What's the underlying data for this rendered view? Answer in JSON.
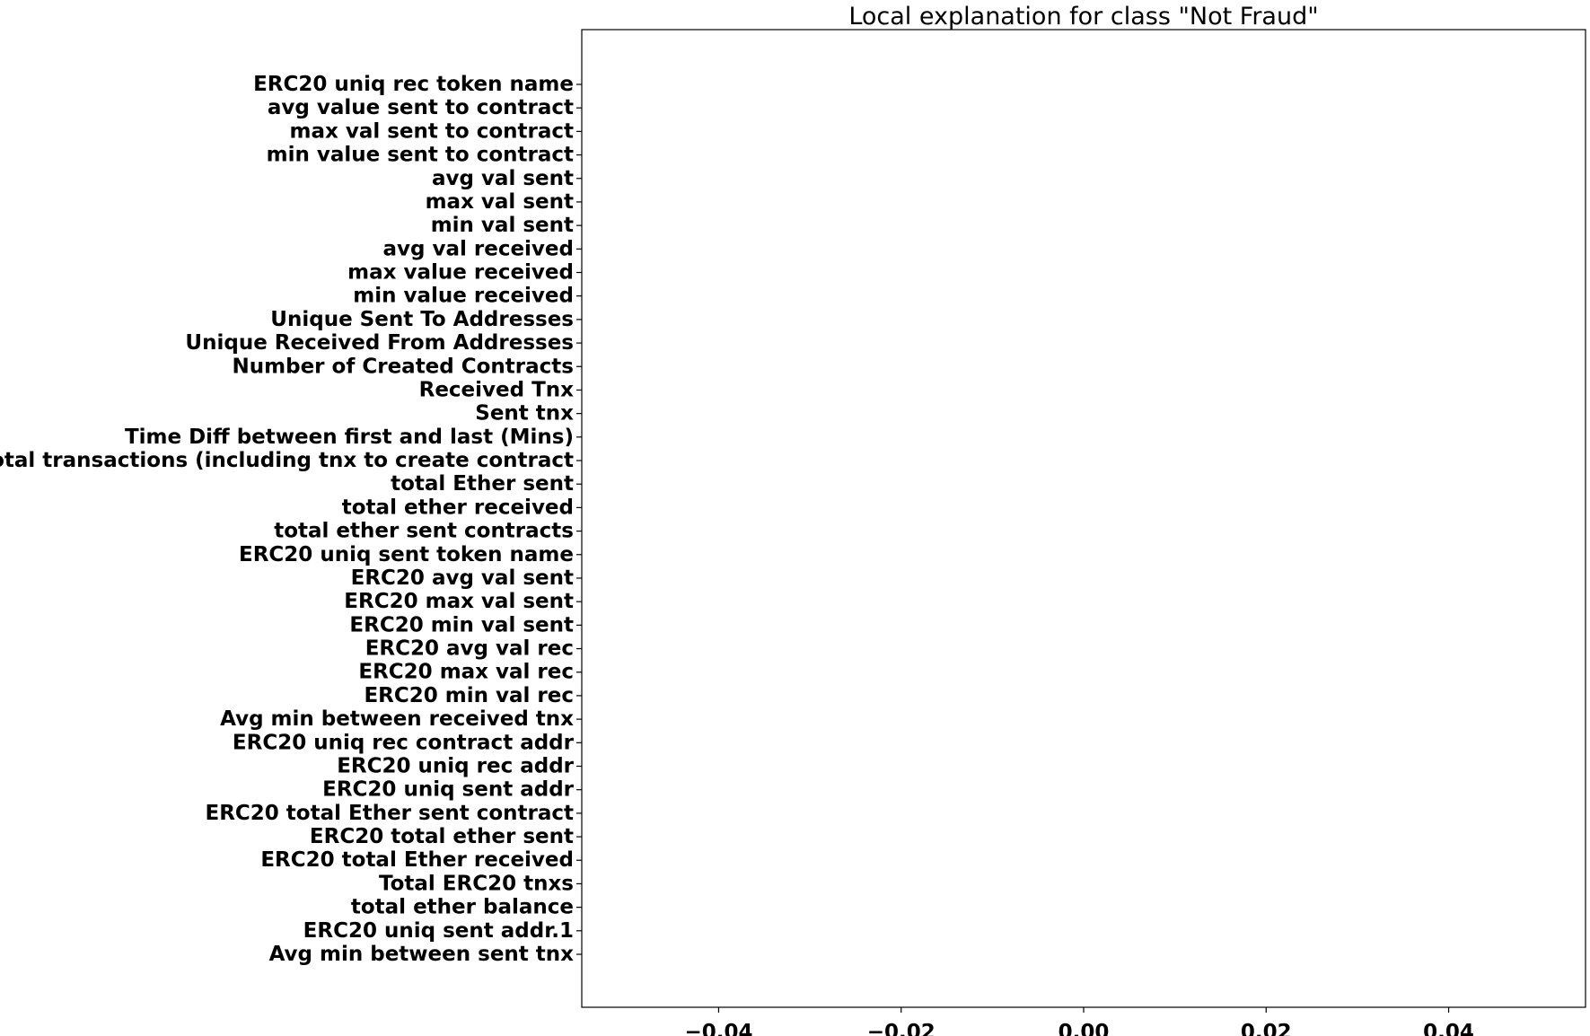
{
  "chart_data": {
    "type": "bar",
    "title": "Local explanation for class \"Not Fraud\"",
    "xlabel": "",
    "ylabel": "",
    "grid": false,
    "xlim": [
      -0.055,
      0.055
    ],
    "x_ticks": [
      -0.04,
      -0.02,
      0.0,
      0.02,
      0.04
    ],
    "x_tick_labels": [
      "−0.04",
      "−0.02",
      "0.00",
      "0.02",
      "0.04"
    ],
    "categories": [
      "ERC20 uniq rec token name",
      "avg value sent to contract",
      "max val sent to contract",
      "min value sent to contract",
      "avg val sent",
      "max val sent",
      "min val sent",
      "avg val received",
      "max value received ",
      "min value received",
      "Unique Sent To Addresses",
      "Unique Received From Addresses",
      "Number of Created Contracts",
      "Received Tnx",
      "Sent tnx",
      "Time Diff between first and last (Mins)",
      "total transactions (including tnx to create contract",
      "total Ether sent",
      "total ether received",
      "total ether sent contracts",
      "ERC20 uniq sent token name",
      "ERC20 avg val sent",
      "ERC20 max val sent",
      "ERC20 min val sent",
      "ERC20 avg val rec",
      "ERC20 max val rec",
      "ERC20 min val rec",
      "Avg min between received tnx",
      "ERC20 uniq rec contract addr",
      "ERC20 uniq rec addr",
      "ERC20 uniq sent addr",
      "ERC20 total Ether sent contract",
      "ERC20 total ether sent",
      "ERC20 total Ether received",
      "Total ERC20 tnxs",
      "total ether balance",
      "ERC20 uniq sent addr.1",
      "Avg min between sent tnx"
    ],
    "values": [
      0,
      0,
      0,
      0,
      0,
      0,
      0,
      0,
      0,
      0,
      0,
      0,
      0,
      0,
      0,
      0,
      0,
      0,
      0,
      0,
      0,
      0,
      0,
      0,
      0,
      0,
      0,
      0,
      0,
      0,
      0,
      0,
      0,
      0,
      0,
      0,
      0,
      0
    ],
    "colors": {
      "frame": "#000000",
      "text": "#000000",
      "background": "#ffffff"
    }
  }
}
